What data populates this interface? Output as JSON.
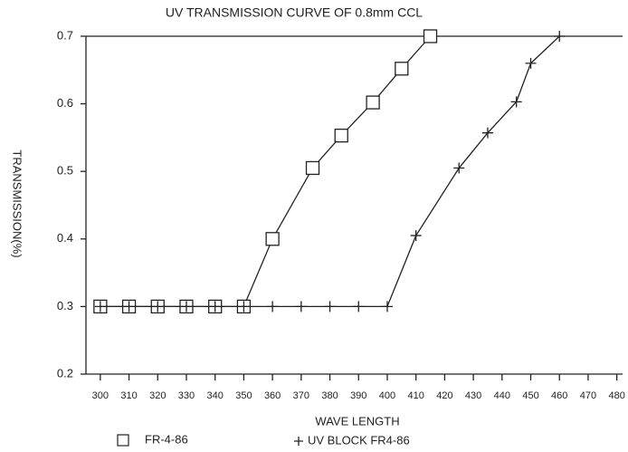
{
  "chart_data": {
    "type": "line",
    "title": "UV TRANSMISSION CURVE OF 0.8mm CCL",
    "x_label": "WAVE LENGTH",
    "y_label": "TRANSMISSION(%)",
    "xlim": [
      295,
      482
    ],
    "ylim": [
      0.2,
      0.7
    ],
    "xticks": [
      300,
      310,
      320,
      330,
      340,
      350,
      360,
      370,
      380,
      390,
      400,
      410,
      420,
      430,
      440,
      450,
      460,
      470,
      480
    ],
    "yticks": [
      0.2,
      0.3,
      0.4,
      0.5,
      0.6,
      0.7
    ],
    "series": [
      {
        "name": "FR-4-86",
        "color": "#222222",
        "marker": "square",
        "x": [
          300,
          310,
          320,
          330,
          340,
          350,
          360,
          374,
          384,
          395,
          405,
          415
        ],
        "values": [
          0.3,
          0.3,
          0.3,
          0.3,
          0.3,
          0.3,
          0.4,
          0.505,
          0.553,
          0.602,
          0.652,
          0.7
        ]
      },
      {
        "name": "UV BLOCK FR4-86",
        "color": "#222222",
        "marker": "plus",
        "x": [
          300,
          310,
          320,
          330,
          340,
          350,
          360,
          370,
          380,
          390,
          400,
          410,
          425,
          435,
          445,
          450,
          460
        ],
        "values": [
          0.3,
          0.3,
          0.3,
          0.3,
          0.3,
          0.3,
          0.3,
          0.3,
          0.3,
          0.3,
          0.3,
          0.405,
          0.505,
          0.557,
          0.603,
          0.66,
          0.7
        ]
      }
    ]
  }
}
